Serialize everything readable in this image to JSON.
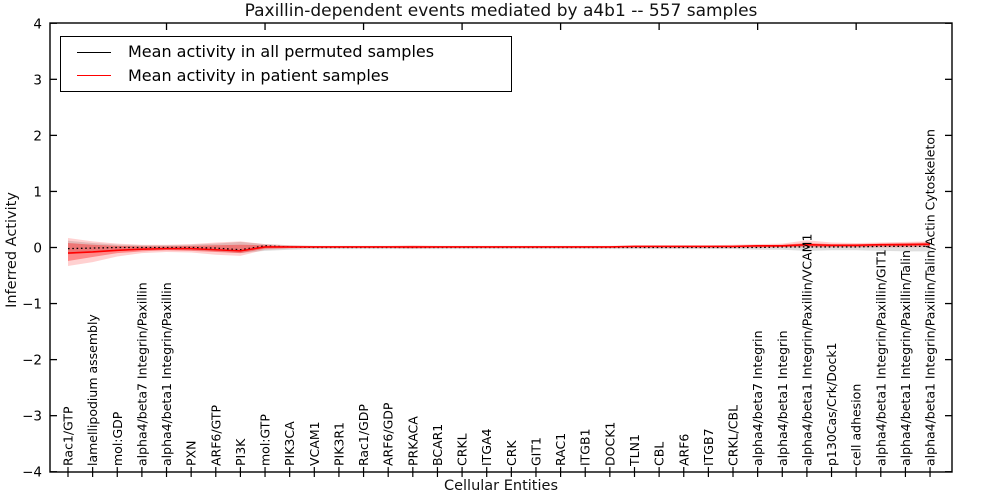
{
  "chart_data": {
    "type": "line",
    "title": "Paxillin-dependent events mediated by a4b1 -- 557 samples",
    "xlabel": "Cellular Entities",
    "ylabel": "Inferred Activity",
    "ylim": [
      -4,
      4
    ],
    "yticks": [
      4,
      3,
      2,
      1,
      0,
      -1,
      -2,
      -3,
      -4
    ],
    "grid": false,
    "legend_position": "upper left",
    "categories": [
      "Rac1/GTP",
      "lamellipodium assembly",
      "mol:GDP",
      "alpha4/beta7 Integrin/Paxillin",
      "alpha4/beta1 Integrin/Paxillin",
      "PXN",
      "ARF6/GTP",
      "PI3K",
      "mol:GTP",
      "PIK3CA",
      "VCAM1",
      "PIK3R1",
      "Rac1/GDP",
      "ARF6/GDP",
      "PRKACA",
      "BCAR1",
      "CRKL",
      "ITGA4",
      "CRK",
      "GIT1",
      "RAC1",
      "ITGB1",
      "DOCK1",
      "TLN1",
      "CBL",
      "ARF6",
      "ITGB7",
      "CRKL/CBL",
      "alpha4/beta7 Integrin",
      "alpha4/beta1 Integrin",
      "alpha4/beta1 Integrin/Paxillin/VCAM1",
      "p130Cas/Crk/Dock1",
      "cell adhesion",
      "alpha4/beta1 Integrin/Paxillin/GIT1",
      "alpha4/beta1 Integrin/Paxillin/Talin",
      "alpha4/beta1 Integrin/Paxillin/Talin/Actin Cytoskeleton"
    ],
    "series": [
      {
        "name": "Mean activity in all permuted samples",
        "color": "#000000",
        "style": "dotted",
        "width": 1.3,
        "values": [
          -0.02,
          -0.01,
          0.0,
          0.0,
          0.0,
          0.0,
          -0.01,
          -0.04,
          0.03,
          0.01,
          0.0,
          0.0,
          0.0,
          0.0,
          0.0,
          0.0,
          0.0,
          0.0,
          0.0,
          0.0,
          0.0,
          0.0,
          0.0,
          0.0,
          0.0,
          0.0,
          0.0,
          0.0,
          0.0,
          0.01,
          0.01,
          0.01,
          0.01,
          0.02,
          0.02,
          0.02
        ]
      },
      {
        "name": "Mean activity in patient samples",
        "color": "#ff0000",
        "style": "solid",
        "width": 1.6,
        "values": [
          -0.1,
          -0.08,
          -0.05,
          -0.03,
          -0.02,
          -0.02,
          -0.04,
          -0.06,
          0.01,
          0.01,
          0.01,
          0.01,
          0.01,
          0.01,
          0.01,
          0.01,
          0.01,
          0.01,
          0.01,
          0.01,
          0.01,
          0.01,
          0.01,
          0.02,
          0.02,
          0.02,
          0.02,
          0.02,
          0.03,
          0.03,
          0.05,
          0.04,
          0.04,
          0.05,
          0.05,
          0.06
        ]
      }
    ],
    "bands": [
      {
        "name": "permuted-range",
        "color": "rgba(0,0,0,0.13)",
        "upper": [
          0.12,
          0.08,
          0.05,
          0.04,
          0.04,
          0.05,
          0.07,
          0.1,
          0.06,
          0.04,
          0.03,
          0.03,
          0.03,
          0.03,
          0.03,
          0.03,
          0.03,
          0.03,
          0.03,
          0.03,
          0.03,
          0.03,
          0.03,
          0.03,
          0.03,
          0.03,
          0.03,
          0.03,
          0.04,
          0.04,
          0.06,
          0.05,
          0.05,
          0.06,
          0.07,
          0.07
        ],
        "lower": [
          -0.12,
          -0.08,
          -0.05,
          -0.04,
          -0.04,
          -0.05,
          -0.07,
          -0.1,
          -0.06,
          -0.04,
          -0.03,
          -0.03,
          -0.03,
          -0.03,
          -0.03,
          -0.03,
          -0.03,
          -0.03,
          -0.03,
          -0.03,
          -0.03,
          -0.03,
          -0.03,
          -0.03,
          -0.03,
          -0.03,
          -0.03,
          -0.03,
          -0.04,
          -0.04,
          -0.06,
          -0.05,
          -0.05,
          -0.06,
          -0.07,
          -0.07
        ]
      },
      {
        "name": "patient-range-outer",
        "color": "rgba(255,0,0,0.18)",
        "upper": [
          0.17,
          0.11,
          0.07,
          0.05,
          0.05,
          0.06,
          0.09,
          0.11,
          0.06,
          0.04,
          0.03,
          0.03,
          0.03,
          0.03,
          0.04,
          0.03,
          0.03,
          0.03,
          0.03,
          0.03,
          0.03,
          0.03,
          0.03,
          0.04,
          0.04,
          0.04,
          0.04,
          0.05,
          0.06,
          0.07,
          0.13,
          0.09,
          0.08,
          0.09,
          0.1,
          0.11
        ],
        "lower": [
          -0.33,
          -0.26,
          -0.16,
          -0.1,
          -0.08,
          -0.09,
          -0.13,
          -0.15,
          -0.04,
          -0.02,
          -0.01,
          -0.01,
          -0.01,
          -0.01,
          -0.02,
          -0.01,
          -0.01,
          -0.01,
          -0.01,
          -0.01,
          -0.01,
          -0.01,
          -0.01,
          -0.01,
          -0.01,
          -0.01,
          -0.01,
          -0.01,
          -0.01,
          0.0,
          0.0,
          0.0,
          0.0,
          0.0,
          0.0,
          0.01
        ]
      },
      {
        "name": "patient-range-inner",
        "color": "rgba(255,0,0,0.35)",
        "upper": [
          0.08,
          0.05,
          0.03,
          0.02,
          0.02,
          0.03,
          0.04,
          0.05,
          0.04,
          0.02,
          0.02,
          0.02,
          0.02,
          0.02,
          0.02,
          0.02,
          0.02,
          0.02,
          0.02,
          0.02,
          0.02,
          0.02,
          0.02,
          0.03,
          0.03,
          0.03,
          0.03,
          0.03,
          0.04,
          0.05,
          0.08,
          0.06,
          0.06,
          0.07,
          0.08,
          0.09
        ],
        "lower": [
          -0.24,
          -0.17,
          -0.1,
          -0.07,
          -0.05,
          -0.06,
          -0.08,
          -0.1,
          -0.02,
          -0.01,
          0.0,
          0.0,
          0.0,
          0.0,
          -0.01,
          0.0,
          0.0,
          0.0,
          0.0,
          0.0,
          0.0,
          0.0,
          0.0,
          0.0,
          0.0,
          0.0,
          0.0,
          0.0,
          0.01,
          0.01,
          0.02,
          0.01,
          0.01,
          0.02,
          0.02,
          0.03
        ]
      }
    ]
  }
}
